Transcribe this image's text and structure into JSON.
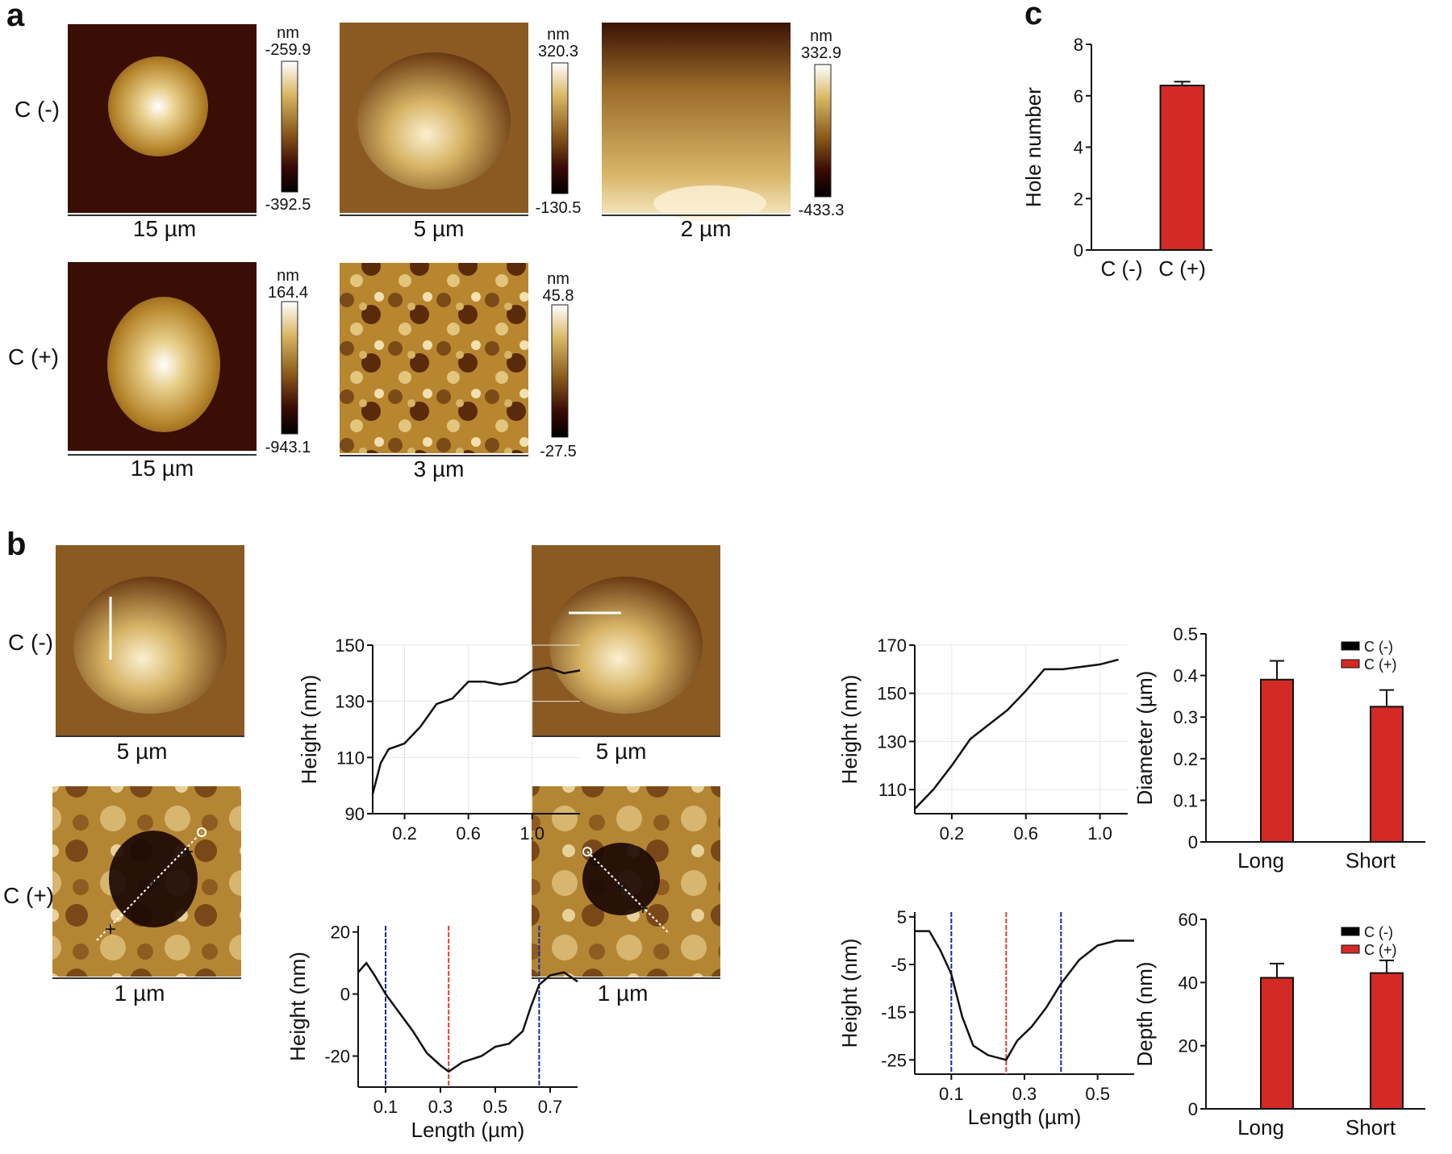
{
  "panels": {
    "a": {
      "letter": "a",
      "row_labels": [
        "C (-)",
        "C (+)"
      ],
      "images": [
        {
          "id": "a1",
          "scalebar": "15 µm",
          "cbar_unit": "nm",
          "cbar_max": "-259.9",
          "cbar_min": "-392.5"
        },
        {
          "id": "a2",
          "scalebar": "5 µm",
          "cbar_unit": "nm",
          "cbar_max": "320.3",
          "cbar_min": "-130.5"
        },
        {
          "id": "a3",
          "scalebar": "2 µm",
          "cbar_unit": "nm",
          "cbar_max": "332.9",
          "cbar_min": "-433.3"
        },
        {
          "id": "a4",
          "scalebar": "15 µm",
          "cbar_unit": "nm",
          "cbar_max": "164.4",
          "cbar_min": "-943.1"
        },
        {
          "id": "a5",
          "scalebar": "3 µm",
          "cbar_unit": "nm",
          "cbar_max": "45.8",
          "cbar_min": "-27.5"
        }
      ]
    },
    "b": {
      "letter": "b",
      "row_labels": [
        "C (-)",
        "C (+)"
      ],
      "images": [
        {
          "id": "b1",
          "scalebar": "5 µm"
        },
        {
          "id": "b2",
          "scalebar": "5 µm"
        },
        {
          "id": "b3",
          "scalebar": "1 µm"
        },
        {
          "id": "b4",
          "scalebar": "1 µm"
        }
      ]
    },
    "c": {
      "letter": "c"
    }
  },
  "chart_data": [
    {
      "id": "c",
      "type": "bar",
      "title": "",
      "categories": [
        "C (-)",
        "C (+)"
      ],
      "values": [
        0,
        6.4
      ],
      "errors": [
        0,
        0.15
      ],
      "xlabel": "",
      "ylabel": "Hole number",
      "ylim": [
        0,
        8
      ],
      "yticks": [
        "0",
        "2",
        "4",
        "6",
        "8"
      ],
      "bar_color": "#d42a26"
    },
    {
      "id": "b_prof1",
      "type": "line",
      "title": "",
      "xlabel": "",
      "ylabel": "Height (nm)",
      "xlim": [
        0,
        1.3
      ],
      "ylim": [
        90,
        150
      ],
      "xticks": [
        "0.2",
        "0.6",
        "1.0"
      ],
      "xtick_values": [
        0.2,
        0.6,
        1.0
      ],
      "yticks": [
        "90",
        "110",
        "130",
        "150"
      ],
      "ytick_values": [
        90,
        110,
        130,
        150
      ],
      "x": [
        0,
        0.05,
        0.1,
        0.15,
        0.2,
        0.3,
        0.4,
        0.5,
        0.6,
        0.7,
        0.8,
        0.9,
        1.0,
        1.1,
        1.2,
        1.3
      ],
      "y": [
        97,
        108,
        113,
        114,
        115,
        121,
        129,
        131,
        137,
        137,
        136,
        137,
        141,
        142,
        140,
        141
      ]
    },
    {
      "id": "b_prof2",
      "type": "line",
      "title": "",
      "xlabel": "",
      "ylabel": "Height (nm)",
      "xlim": [
        0,
        1.15
      ],
      "ylim": [
        100,
        170
      ],
      "xticks": [
        "0.2",
        "0.6",
        "1.0"
      ],
      "xtick_values": [
        0.2,
        0.6,
        1.0
      ],
      "yticks": [
        "110",
        "130",
        "150",
        "170"
      ],
      "ytick_values": [
        110,
        130,
        150,
        170
      ],
      "x": [
        0,
        0.1,
        0.2,
        0.3,
        0.4,
        0.5,
        0.6,
        0.7,
        0.8,
        0.9,
        1.0,
        1.1
      ],
      "y": [
        102,
        110,
        120,
        131,
        137,
        143,
        151,
        160,
        160,
        161,
        162,
        164
      ]
    },
    {
      "id": "b_prof3",
      "type": "line",
      "title": "",
      "xlabel": "Length (µm)",
      "ylabel": "Height (nm)",
      "xlim": [
        0,
        0.8
      ],
      "ylim": [
        -30,
        22
      ],
      "xticks": [
        "0.1",
        "0.3",
        "0.5",
        "0.7"
      ],
      "xtick_values": [
        0.1,
        0.3,
        0.5,
        0.7
      ],
      "yticks": [
        "-20",
        "0",
        "20"
      ],
      "ytick_values": [
        -20,
        0,
        20
      ],
      "vlines": [
        {
          "x": 0.1,
          "color": "#1f2a9a"
        },
        {
          "x": 0.33,
          "color": "#e0402a"
        },
        {
          "x": 0.66,
          "color": "#1f2a9a"
        }
      ],
      "x": [
        0,
        0.03,
        0.06,
        0.1,
        0.15,
        0.2,
        0.25,
        0.3,
        0.33,
        0.38,
        0.45,
        0.5,
        0.55,
        0.6,
        0.63,
        0.66,
        0.7,
        0.75,
        0.8
      ],
      "y": [
        7,
        10,
        6,
        0,
        -6,
        -12,
        -19,
        -23,
        -25,
        -22,
        -20,
        -17,
        -16,
        -12,
        -4,
        3,
        6,
        7,
        4
      ]
    },
    {
      "id": "b_prof4",
      "type": "line",
      "title": "",
      "xlabel": "Length (µm)",
      "ylabel": "Height (nm)",
      "xlim": [
        0,
        0.6
      ],
      "ylim": [
        -28,
        6
      ],
      "xticks": [
        "0.1",
        "0.3",
        "0.5"
      ],
      "xtick_values": [
        0.1,
        0.3,
        0.5
      ],
      "yticks": [
        "5",
        "-5",
        "-15",
        "-25"
      ],
      "ytick_values": [
        5,
        -5,
        -15,
        -25
      ],
      "vlines": [
        {
          "x": 0.1,
          "color": "#1f2a9a"
        },
        {
          "x": 0.25,
          "color": "#e0402a"
        },
        {
          "x": 0.4,
          "color": "#1f2a9a"
        }
      ],
      "x": [
        0,
        0.04,
        0.07,
        0.1,
        0.13,
        0.16,
        0.2,
        0.25,
        0.28,
        0.32,
        0.36,
        0.4,
        0.45,
        0.5,
        0.55,
        0.6
      ],
      "y": [
        2,
        2,
        -2,
        -7,
        -16,
        -22,
        -24,
        -25,
        -21,
        -18,
        -14,
        -9,
        -4,
        -1,
        0,
        0
      ]
    },
    {
      "id": "b_diam",
      "type": "bar",
      "title": "",
      "categories": [
        "Long",
        "Short"
      ],
      "series": [
        {
          "name": "C (-)",
          "color": "#000000",
          "values": [
            0,
            0
          ],
          "errors": [
            0,
            0
          ]
        },
        {
          "name": "C (+)",
          "color": "#d42a26",
          "values": [
            0.39,
            0.325
          ],
          "errors": [
            0.045,
            0.04
          ]
        }
      ],
      "ylabel": "Diameter (µm)",
      "ylim": [
        0,
        0.5
      ],
      "yticks": [
        "0",
        "0.1",
        "0.2",
        "0.3",
        "0.4",
        "0.5"
      ],
      "ytick_values": [
        0,
        0.1,
        0.2,
        0.3,
        0.4,
        0.5
      ]
    },
    {
      "id": "b_depth",
      "type": "bar",
      "title": "",
      "categories": [
        "Long",
        "Short"
      ],
      "series": [
        {
          "name": "C (-)",
          "color": "#000000",
          "values": [
            0,
            0
          ],
          "errors": [
            0,
            0
          ]
        },
        {
          "name": "C (+)",
          "color": "#d42a26",
          "values": [
            41.5,
            43
          ],
          "errors": [
            4.5,
            4
          ]
        }
      ],
      "ylabel": "Depth (nm)",
      "ylim": [
        0,
        60
      ],
      "yticks": [
        "0",
        "20",
        "40",
        "60"
      ],
      "ytick_values": [
        0,
        20,
        40,
        60
      ]
    }
  ]
}
